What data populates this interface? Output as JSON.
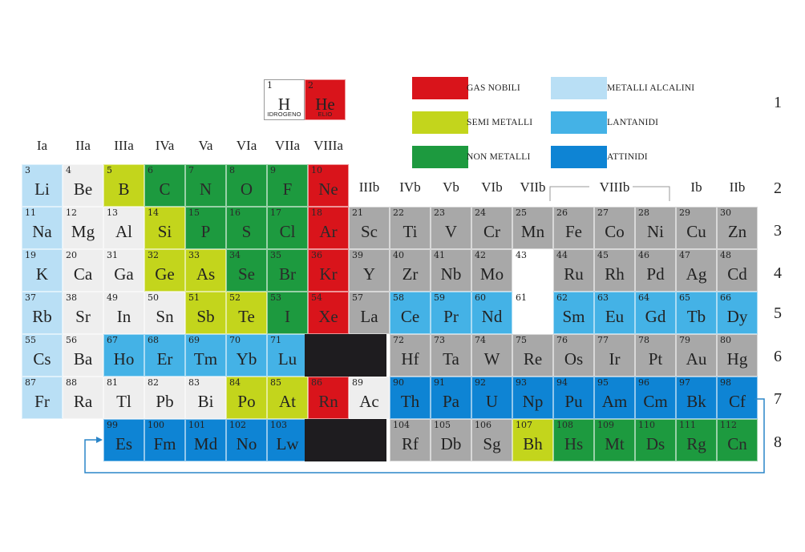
{
  "colors": {
    "gas_nobili": "#d9141b",
    "semi_metalli": "#c3d51c",
    "non_metalli": "#1d9a3f",
    "metalli_alcalini": "#b9dff5",
    "lantanidi": "#44b2e6",
    "attinidi": "#0e84d4",
    "metalli": "#a8a8a8",
    "altri": "#eeeeee",
    "vuoto": "#ffffff",
    "blocco": "#1e1c1f"
  },
  "hydrogen_box": {
    "h": {
      "num": "1",
      "sym": "H",
      "name": "IDROGENO",
      "color": "altri"
    },
    "he": {
      "num": "2",
      "sym": "He",
      "name": "ELIO",
      "color": "gas_nobili"
    }
  },
  "legend": [
    {
      "label": "GAS NOBILI",
      "color": "gas_nobili"
    },
    {
      "label": "SEMI METALLI",
      "color": "semi_metalli"
    },
    {
      "label": "NON METALLI",
      "color": "non_metalli"
    },
    {
      "label": "METALLI ALCALINI",
      "color": "metalli_alcalini"
    },
    {
      "label": "LANTANIDI",
      "color": "lantanidi"
    },
    {
      "label": "ATTINIDI",
      "color": "attinidi"
    }
  ],
  "group_labels_a": [
    "Ia",
    "IIa",
    "IIIa",
    "IVa",
    "Va",
    "VIa",
    "VIIa",
    "VIIIa"
  ],
  "group_labels_b": [
    "IIIb",
    "IVb",
    "Vb",
    "VIb",
    "VIIb",
    "VIIIb",
    "Ib",
    "IIb"
  ],
  "period_labels": [
    "1",
    "2",
    "3",
    "4",
    "5",
    "6",
    "7",
    "8"
  ],
  "rows": [
    [
      [
        "3",
        "Li",
        "metalli_alcalini"
      ],
      [
        "4",
        "Be",
        "altri"
      ],
      [
        "5",
        "B",
        "semi_metalli"
      ],
      [
        "6",
        "C",
        "non_metalli"
      ],
      [
        "7",
        "N",
        "non_metalli"
      ],
      [
        "8",
        "O",
        "non_metalli"
      ],
      [
        "9",
        "F",
        "non_metalli"
      ],
      [
        "10",
        "Ne",
        "gas_nobili"
      ]
    ],
    [
      [
        "11",
        "Na",
        "metalli_alcalini"
      ],
      [
        "12",
        "Mg",
        "altri"
      ],
      [
        "13",
        "Al",
        "altri"
      ],
      [
        "14",
        "Si",
        "semi_metalli"
      ],
      [
        "15",
        "P",
        "non_metalli"
      ],
      [
        "16",
        "S",
        "non_metalli"
      ],
      [
        "17",
        "Cl",
        "non_metalli"
      ],
      [
        "18",
        "Ar",
        "gas_nobili"
      ],
      [
        "21",
        "Sc",
        "metalli"
      ],
      [
        "22",
        "Ti",
        "metalli"
      ],
      [
        "23",
        "V",
        "metalli"
      ],
      [
        "24",
        "Cr",
        "metalli"
      ],
      [
        "25",
        "Mn",
        "metalli"
      ],
      [
        "26",
        "Fe",
        "metalli"
      ],
      [
        "27",
        "Co",
        "metalli"
      ],
      [
        "28",
        "Ni",
        "metalli"
      ],
      [
        "29",
        "Cu",
        "metalli"
      ],
      [
        "30",
        "Zn",
        "metalli"
      ]
    ],
    [
      [
        "19",
        "K",
        "metalli_alcalini"
      ],
      [
        "20",
        "Ca",
        "altri"
      ],
      [
        "31",
        "Ga",
        "altri"
      ],
      [
        "32",
        "Ge",
        "semi_metalli"
      ],
      [
        "33",
        "As",
        "semi_metalli"
      ],
      [
        "34",
        "Se",
        "non_metalli"
      ],
      [
        "35",
        "Br",
        "non_metalli"
      ],
      [
        "36",
        "Kr",
        "gas_nobili"
      ],
      [
        "39",
        "Y",
        "metalli"
      ],
      [
        "40",
        "Zr",
        "metalli"
      ],
      [
        "41",
        "Nb",
        "metalli"
      ],
      [
        "42",
        "Mo",
        "metalli"
      ],
      [
        "43",
        "",
        "vuoto"
      ],
      [
        "44",
        "Ru",
        "metalli"
      ],
      [
        "45",
        "Rh",
        "metalli"
      ],
      [
        "46",
        "Pd",
        "metalli"
      ],
      [
        "47",
        "Ag",
        "metalli"
      ],
      [
        "48",
        "Cd",
        "metalli"
      ]
    ],
    [
      [
        "37",
        "Rb",
        "metalli_alcalini"
      ],
      [
        "38",
        "Sr",
        "altri"
      ],
      [
        "49",
        "In",
        "altri"
      ],
      [
        "50",
        "Sn",
        "altri"
      ],
      [
        "51",
        "Sb",
        "semi_metalli"
      ],
      [
        "52",
        "Te",
        "semi_metalli"
      ],
      [
        "53",
        "I",
        "non_metalli"
      ],
      [
        "54",
        "Xe",
        "gas_nobili"
      ],
      [
        "57",
        "La",
        "metalli"
      ],
      [
        "58",
        "Ce",
        "lantanidi"
      ],
      [
        "59",
        "Pr",
        "lantanidi"
      ],
      [
        "60",
        "Nd",
        "lantanidi"
      ],
      [
        "61",
        "",
        "vuoto"
      ],
      [
        "62",
        "Sm",
        "lantanidi"
      ],
      [
        "63",
        "Eu",
        "lantanidi"
      ],
      [
        "64",
        "Gd",
        "lantanidi"
      ],
      [
        "65",
        "Tb",
        "lantanidi"
      ],
      [
        "66",
        "Dy",
        "lantanidi"
      ]
    ],
    [
      [
        "55",
        "Cs",
        "metalli_alcalini"
      ],
      [
        "56",
        "Ba",
        "altri"
      ],
      [
        "67",
        "Ho",
        "lantanidi"
      ],
      [
        "68",
        "Er",
        "lantanidi"
      ],
      [
        "69",
        "Tm",
        "lantanidi"
      ],
      [
        "70",
        "Yb",
        "lantanidi"
      ],
      [
        "71",
        "Lu",
        "lantanidi"
      ],
      null,
      null,
      [
        "72",
        "Hf",
        "metalli"
      ],
      [
        "73",
        "Ta",
        "metalli"
      ],
      [
        "74",
        "W",
        "metalli"
      ],
      [
        "75",
        "Re",
        "metalli"
      ],
      [
        "76",
        "Os",
        "metalli"
      ],
      [
        "77",
        "Ir",
        "metalli"
      ],
      [
        "78",
        "Pt",
        "metalli"
      ],
      [
        "79",
        "Au",
        "metalli"
      ],
      [
        "80",
        "Hg",
        "metalli"
      ]
    ],
    [
      [
        "87",
        "Fr",
        "metalli_alcalini"
      ],
      [
        "88",
        "Ra",
        "altri"
      ],
      [
        "81",
        "Tl",
        "altri"
      ],
      [
        "82",
        "Pb",
        "altri"
      ],
      [
        "83",
        "Bi",
        "altri"
      ],
      [
        "84",
        "Po",
        "semi_metalli"
      ],
      [
        "85",
        "At",
        "semi_metalli"
      ],
      [
        "86",
        "Rn",
        "gas_nobili"
      ],
      [
        "89",
        "Ac",
        "altri"
      ],
      [
        "90",
        "Th",
        "attinidi"
      ],
      [
        "91",
        "Pa",
        "attinidi"
      ],
      [
        "92",
        "U",
        "attinidi"
      ],
      [
        "93",
        "Np",
        "attinidi"
      ],
      [
        "94",
        "Pu",
        "attinidi"
      ],
      [
        "95",
        "Am",
        "attinidi"
      ],
      [
        "96",
        "Cm",
        "attinidi"
      ],
      [
        "97",
        "Bk",
        "attinidi"
      ],
      [
        "98",
        "Cf",
        "attinidi"
      ]
    ],
    [
      null,
      null,
      [
        "99",
        "Es",
        "attinidi"
      ],
      [
        "100",
        "Fm",
        "attinidi"
      ],
      [
        "101",
        "Md",
        "attinidi"
      ],
      [
        "102",
        "No",
        "attinidi"
      ],
      [
        "103",
        "Lw",
        "attinidi"
      ],
      null,
      null,
      [
        "104",
        "Rf",
        "metalli"
      ],
      [
        "105",
        "Db",
        "metalli"
      ],
      [
        "106",
        "Sg",
        "metalli"
      ],
      [
        "107",
        "Bh",
        "semi_metalli"
      ],
      [
        "108",
        "Hs",
        "non_metalli"
      ],
      [
        "109",
        "Mt",
        "non_metalli"
      ],
      [
        "110",
        "Ds",
        "non_metalli"
      ],
      [
        "111",
        "Rg",
        "non_metalli"
      ],
      [
        "112",
        "Cn",
        "non_metalli"
      ]
    ]
  ]
}
